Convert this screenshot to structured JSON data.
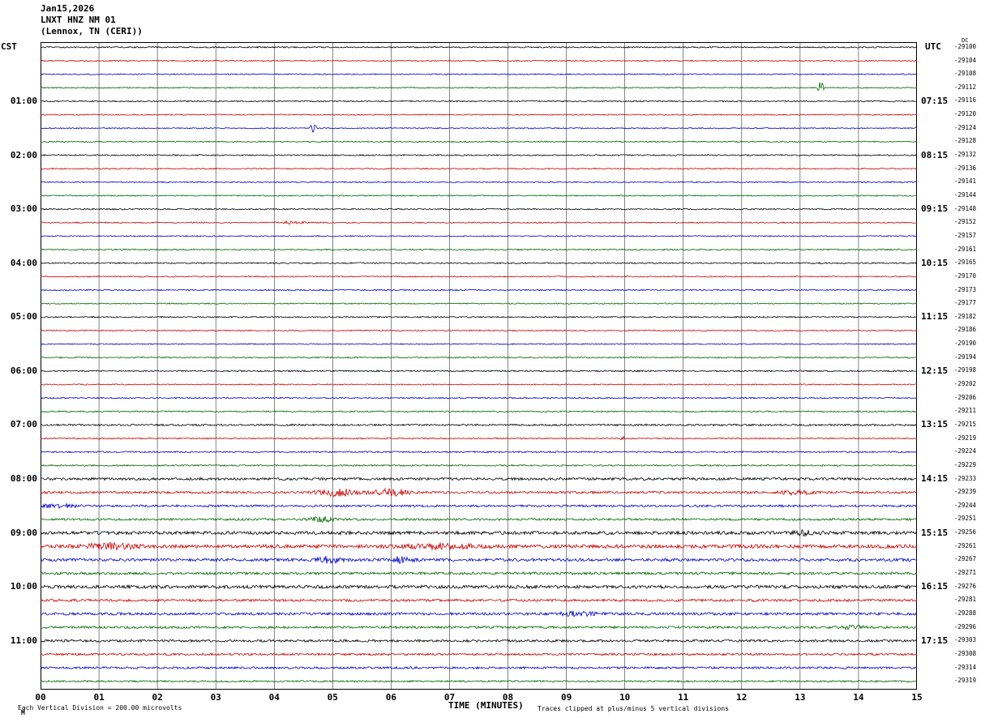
{
  "title": {
    "date": "Jan15,2026",
    "station": "LNXT HNZ NM 01",
    "location": "(Lennox, TN (CERI))"
  },
  "axes": {
    "left_header": "CST",
    "right_header": "UTC",
    "dc_header": "DC",
    "xlabel": "TIME (MINUTES)",
    "x_ticks": [
      "00",
      "01",
      "02",
      "03",
      "04",
      "05",
      "06",
      "07",
      "08",
      "09",
      "10",
      "11",
      "12",
      "13",
      "14",
      "15"
    ]
  },
  "footer": {
    "scale_note": "Each Vertical Division =  200.00 microvolts",
    "clip_note": "Traces clipped at plus/minus 5 vertical divisions",
    "logo_glyph": "M"
  },
  "colors": {
    "background": "#ffffff",
    "grid": "#333333",
    "border": "#000000"
  },
  "chart_data": {
    "type": "line",
    "title": "Helicorder seismogram LNXT HNZ NM 01, Jan15,2026",
    "xlabel": "TIME (MINUTES)",
    "x_range_minutes": [
      0,
      15
    ],
    "minutes_per_row": 15,
    "rows_per_hour": 4,
    "clip_limit_divisions": 5,
    "volts_per_division": "200.00 microvolts",
    "trace_color_cycle": [
      "#000000",
      "#cc0000",
      "#0000cc",
      "#006600"
    ],
    "rows": [
      {
        "dc": "-29100",
        "amp": 0.8
      },
      {
        "dc": "-29104",
        "amp": 0.7
      },
      {
        "dc": "-29108",
        "amp": 0.7
      },
      {
        "dc": "-29112",
        "amp": 0.7,
        "spikes": [
          {
            "m": 13.35,
            "a": 11,
            "w": 0.03
          }
        ]
      },
      {
        "dc": "-29116",
        "amp": 0.8,
        "cst": "01:00",
        "utc": "07:15"
      },
      {
        "dc": "-29120",
        "amp": 0.7
      },
      {
        "dc": "-29124",
        "amp": 0.7,
        "spikes": [
          {
            "m": 4.67,
            "a": 7,
            "w": 0.03
          }
        ]
      },
      {
        "dc": "-29128",
        "amp": 0.7
      },
      {
        "dc": "-29132",
        "amp": 0.8,
        "cst": "02:00",
        "utc": "08:15"
      },
      {
        "dc": "-29136",
        "amp": 0.7
      },
      {
        "dc": "-29141",
        "amp": 0.7
      },
      {
        "dc": "-29144",
        "amp": 0.7
      },
      {
        "dc": "-29148",
        "amp": 0.8,
        "cst": "03:00",
        "utc": "09:15"
      },
      {
        "dc": "-29152",
        "amp": 0.7,
        "spikes": [
          {
            "m": 4.3,
            "a": 1.5,
            "w": 0.15
          }
        ]
      },
      {
        "dc": "-29157",
        "amp": 0.7
      },
      {
        "dc": "-29161",
        "amp": 0.8
      },
      {
        "dc": "-29165",
        "amp": 0.8,
        "cst": "04:00",
        "utc": "10:15"
      },
      {
        "dc": "-29170",
        "amp": 0.7
      },
      {
        "dc": "-29173",
        "amp": 0.8
      },
      {
        "dc": "-29177",
        "amp": 0.7
      },
      {
        "dc": "-29182",
        "amp": 0.8,
        "cst": "05:00",
        "utc": "11:15"
      },
      {
        "dc": "-29186",
        "amp": 0.7
      },
      {
        "dc": "-29190",
        "amp": 0.7
      },
      {
        "dc": "-29194",
        "amp": 0.8
      },
      {
        "dc": "-29198",
        "amp": 0.9,
        "cst": "06:00",
        "utc": "12:15"
      },
      {
        "dc": "-29202",
        "amp": 0.7
      },
      {
        "dc": "-29206",
        "amp": 0.8
      },
      {
        "dc": "-29211",
        "amp": 0.8
      },
      {
        "dc": "-29215",
        "amp": 1.1,
        "cst": "07:00",
        "utc": "13:15"
      },
      {
        "dc": "-29219",
        "amp": 0.8,
        "spikes": [
          {
            "m": 10.0,
            "a": 2,
            "w": 0.05
          }
        ]
      },
      {
        "dc": "-29224",
        "amp": 0.9
      },
      {
        "dc": "-29229",
        "amp": 0.9
      },
      {
        "dc": "-29233",
        "amp": 1.6,
        "cst": "08:00",
        "utc": "14:15"
      },
      {
        "dc": "-29239",
        "amp": 1.4,
        "spikes": [
          {
            "m": 5.1,
            "a": 4,
            "w": 0.25
          },
          {
            "m": 6.0,
            "a": 4,
            "w": 0.2
          },
          {
            "m": 12.9,
            "a": 2,
            "w": 0.2
          }
        ]
      },
      {
        "dc": "-29244",
        "amp": 1.3,
        "spikes": [
          {
            "m": 0.3,
            "a": 2,
            "w": 0.2
          }
        ]
      },
      {
        "dc": "-29251",
        "amp": 1.3,
        "spikes": [
          {
            "m": 4.8,
            "a": 3,
            "w": 0.15
          }
        ]
      },
      {
        "dc": "-29256",
        "amp": 2.0,
        "cst": "09:00",
        "utc": "15:15",
        "spikes": [
          {
            "m": 13.1,
            "a": 2,
            "w": 0.2
          }
        ]
      },
      {
        "dc": "-29261",
        "amp": 2.2,
        "spikes": [
          {
            "m": 1.2,
            "a": 3,
            "w": 0.3
          },
          {
            "m": 6.9,
            "a": 2.5,
            "w": 0.4
          }
        ]
      },
      {
        "dc": "-29267",
        "amp": 1.8,
        "spikes": [
          {
            "m": 4.95,
            "a": 3.5,
            "w": 0.15
          },
          {
            "m": 6.15,
            "a": 3,
            "w": 0.15
          }
        ]
      },
      {
        "dc": "-29271",
        "amp": 1.6
      },
      {
        "dc": "-29276",
        "amp": 2.0,
        "cst": "10:00",
        "utc": "16:15"
      },
      {
        "dc": "-29281",
        "amp": 1.5
      },
      {
        "dc": "-29288",
        "amp": 1.6,
        "spikes": [
          {
            "m": 9.2,
            "a": 2.5,
            "w": 0.2
          }
        ]
      },
      {
        "dc": "-29296",
        "amp": 1.4,
        "spikes": [
          {
            "m": 13.9,
            "a": 2,
            "w": 0.15
          }
        ]
      },
      {
        "dc": "-29303",
        "amp": 1.5,
        "cst": "11:00",
        "utc": "17:15"
      },
      {
        "dc": "-29308",
        "amp": 1.3
      },
      {
        "dc": "-29314",
        "amp": 1.3
      },
      {
        "dc": "-29319",
        "amp": 1.0
      }
    ]
  }
}
